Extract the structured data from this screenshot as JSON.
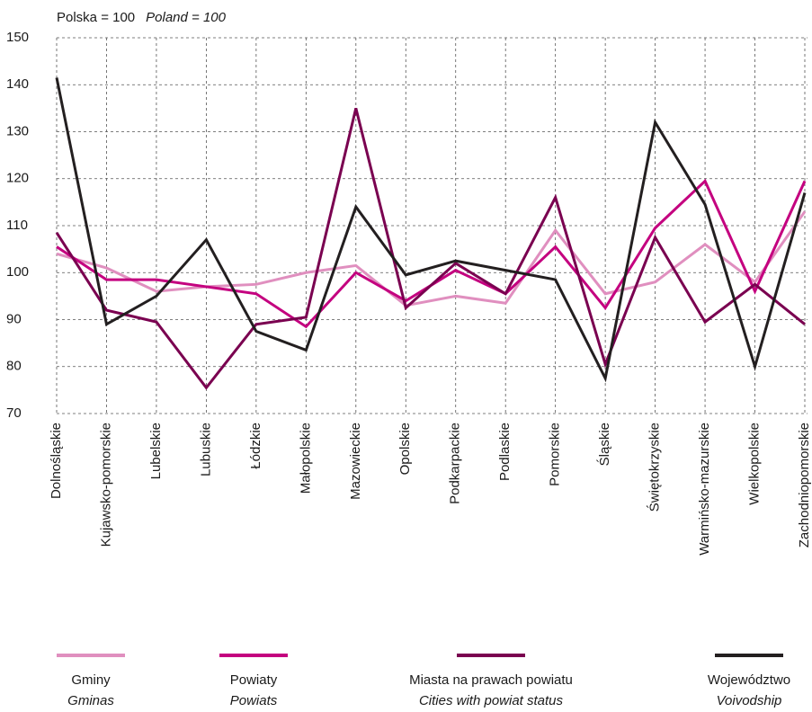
{
  "chart_data": {
    "type": "line",
    "y_label": "Polska = 100",
    "y_label_en": "Poland = 100",
    "categories": [
      "Dolnośląskie",
      "Kujawsko-pomorskie",
      "Lubelskie",
      "Lubuskie",
      "Łódzkie",
      "Małopolskie",
      "Mazowieckie",
      "Opolskie",
      "Podkarpackie",
      "Podlaskie",
      "Pomorskie",
      "Śląskie",
      "Świętokrzyskie",
      "Warmińsko-mazurskie",
      "Wielkopolskie",
      "Zachodniopomorskie"
    ],
    "series": [
      {
        "name": "Gminy",
        "name_en": "Gminas",
        "color": "#e08fbf",
        "values": [
          104,
          101,
          96,
          97,
          97.5,
          100,
          101.5,
          93,
          95,
          93.5,
          109,
          95.5,
          98,
          106,
          98,
          113
        ]
      },
      {
        "name": "Powiaty",
        "name_en": "Powiats",
        "color": "#c4007f",
        "values": [
          105.5,
          98.5,
          98.5,
          97,
          95.5,
          88.5,
          100,
          94,
          100.5,
          95.5,
          105.5,
          92.5,
          109.5,
          119.5,
          96,
          119.5
        ]
      },
      {
        "name": "Miasta na prawach powiatu",
        "name_en": "Cities with powiat status",
        "color": "#7a0050",
        "values": [
          108.5,
          92,
          89.5,
          75.5,
          89,
          90.5,
          135,
          92.5,
          102,
          95.5,
          116,
          80.5,
          107.5,
          89.5,
          97.5,
          89
        ]
      },
      {
        "name": "Województwo",
        "name_en": "Voivodship",
        "color": "#231f20",
        "values": [
          141.5,
          89,
          95,
          107,
          87.5,
          83.5,
          114,
          99.5,
          102.5,
          100.5,
          98.5,
          77.5,
          132,
          114.5,
          80,
          117
        ]
      }
    ],
    "ylim": [
      70,
      150
    ],
    "yticks": [
      70,
      80,
      90,
      100,
      110,
      120,
      130,
      140,
      150
    ],
    "grid": true
  }
}
